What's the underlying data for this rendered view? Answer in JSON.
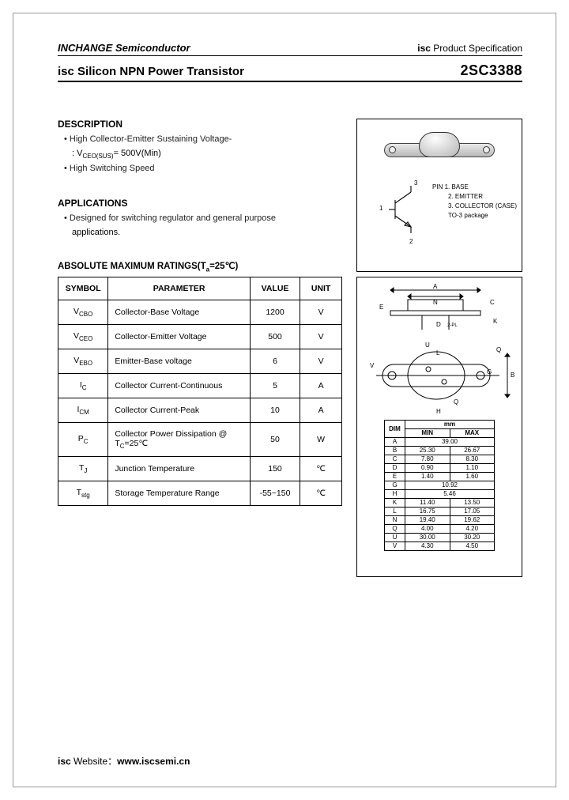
{
  "header": {
    "company": "INCHANGE Semiconductor",
    "spec_prefix": "isc",
    "spec_text": " Product Specification",
    "title": "isc Silicon NPN Power Transistor",
    "part": "2SC3388"
  },
  "description": {
    "title": "DESCRIPTION",
    "line1": "High Collector-Emitter Sustaining Voltage-",
    "line2_pre": ": V",
    "line2_sub": "CEO(SUS)",
    "line2_post": "= 500V(Min)",
    "line3": "High Switching Speed"
  },
  "applications": {
    "title": "APPLICATIONS",
    "line1": "Designed for switching regulator and general purpose",
    "line2": "applications."
  },
  "ratings": {
    "title_pre": "ABSOLUTE MAXIMUM RATINGS(T",
    "title_sub": "a",
    "title_post": "=25℃)",
    "head": {
      "symbol": "SYMBOL",
      "parameter": "PARAMETER",
      "value": "VALUE",
      "unit": "UNIT"
    },
    "rows": [
      {
        "sym": "V",
        "sub": "CBO",
        "param": "Collector-Base Voltage",
        "value": "1200",
        "unit": "V"
      },
      {
        "sym": "V",
        "sub": "CEO",
        "param": "Collector-Emitter Voltage",
        "value": "500",
        "unit": "V"
      },
      {
        "sym": "V",
        "sub": "EBO",
        "param": "Emitter-Base voltage",
        "value": "6",
        "unit": "V"
      },
      {
        "sym": "I",
        "sub": "C",
        "param": "Collector Current-Continuous",
        "value": "5",
        "unit": "A"
      },
      {
        "sym": "I",
        "sub": "CM",
        "param": "Collector Current-Peak",
        "value": "10",
        "unit": "A"
      },
      {
        "sym": "P",
        "sub": "C",
        "param": "Collector Power Dissipation @ T",
        "param_sub": "C",
        "param_post": "=25℃",
        "value": "50",
        "unit": "W"
      },
      {
        "sym": "T",
        "sub": "J",
        "param": "Junction Temperature",
        "value": "150",
        "unit": "℃"
      },
      {
        "sym": "T",
        "sub": "stg",
        "param": "Storage Temperature Range",
        "value": "-55~150",
        "unit": "℃"
      }
    ]
  },
  "pin": {
    "n1": "1",
    "n2": "2",
    "n3": "3",
    "label_h": "PIN",
    "l1": "1. BASE",
    "l2": "2. EMITTER",
    "l3": "3. COLLECTOR (CASE)",
    "pkg": "TO-3 package"
  },
  "outline_labels": [
    "A",
    "N",
    "E",
    "C",
    "K",
    "D",
    "2-PL",
    "V",
    "U",
    "L",
    "G",
    "B",
    "Q",
    "Q",
    "H"
  ],
  "dimensions": {
    "head_dim": "DIM",
    "head_unit": "mm",
    "head_min": "MIN",
    "head_max": "MAX",
    "rows": [
      {
        "d": "A",
        "min": "39.00",
        "max": ""
      },
      {
        "d": "B",
        "min": "25.30",
        "max": "26.67"
      },
      {
        "d": "C",
        "min": "7.80",
        "max": "8.30"
      },
      {
        "d": "D",
        "min": "0.90",
        "max": "1.10"
      },
      {
        "d": "E",
        "min": "1.40",
        "max": "1.60"
      },
      {
        "d": "G",
        "min": "10.92",
        "max": ""
      },
      {
        "d": "H",
        "min": "5.46",
        "max": ""
      },
      {
        "d": "K",
        "min": "11.40",
        "max": "13.50"
      },
      {
        "d": "L",
        "min": "16.75",
        "max": "17.05"
      },
      {
        "d": "N",
        "min": "19.40",
        "max": "19.62"
      },
      {
        "d": "Q",
        "min": "4.00",
        "max": "4.20"
      },
      {
        "d": "U",
        "min": "30.00",
        "max": "30.20"
      },
      {
        "d": "V",
        "min": "4.30",
        "max": "4.50"
      }
    ]
  },
  "footer": {
    "pre": "isc ",
    "label": "Website：",
    "url": "www.iscsemi.cn"
  },
  "colors": {
    "text": "#000000",
    "border": "#000000",
    "page_border": "#999999",
    "metal1": "#e8e8e8",
    "metal2": "#b8b8b8"
  }
}
